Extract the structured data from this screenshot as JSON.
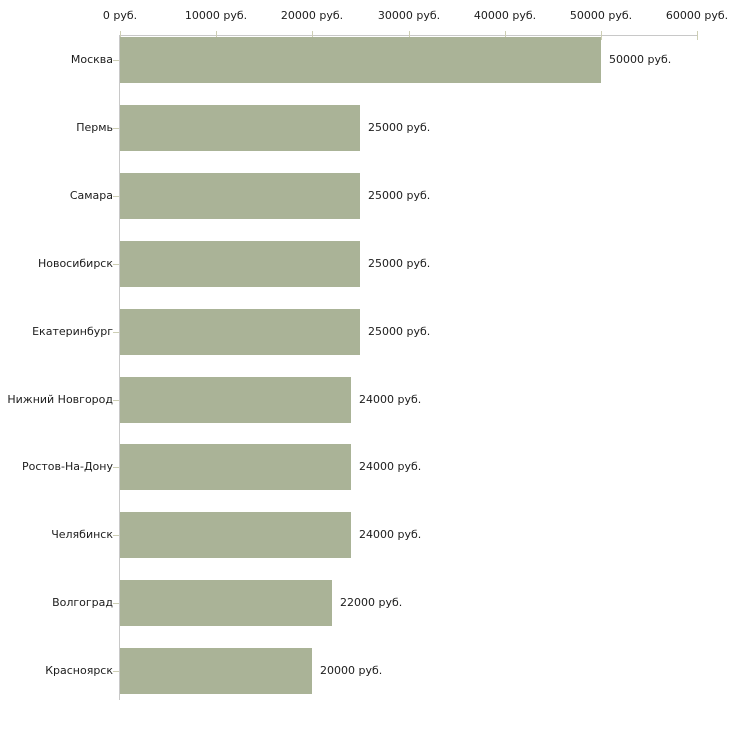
{
  "chart_data": {
    "type": "bar",
    "orientation": "horizontal",
    "title": "",
    "xlabel": "",
    "ylabel": "",
    "unit": "руб.",
    "categories": [
      "Москва",
      "Пермь",
      "Самара",
      "Новосибирск",
      "Екатеринбург",
      "Нижний Новгород",
      "Ростов-На-Дону",
      "Челябинск",
      "Волгоград",
      "Красноярск"
    ],
    "values": [
      50000,
      25000,
      25000,
      25000,
      25000,
      24000,
      24000,
      24000,
      22000,
      20000
    ],
    "value_labels": [
      "50000 руб.",
      "25000 руб.",
      "25000 руб.",
      "25000 руб.",
      "25000 руб.",
      "24000 руб.",
      "24000 руб.",
      "24000 руб.",
      "22000 руб.",
      "20000 руб."
    ],
    "xlim": [
      0,
      60000
    ],
    "x_tick_values": [
      0,
      10000,
      20000,
      30000,
      40000,
      50000,
      60000
    ],
    "x_tick_labels": [
      "0 руб.",
      "10000 руб.",
      "20000 руб.",
      "30000 руб.",
      "40000 руб.",
      "50000 руб.",
      "60000 руб."
    ],
    "x_axis_position": "top",
    "grid": "none",
    "legend": "none",
    "colors": {
      "bar": "#aab397",
      "axis": "#c8c8c8",
      "tick": "#cdceb4",
      "text": "#1c1c1c",
      "background": "#ffffff"
    }
  }
}
